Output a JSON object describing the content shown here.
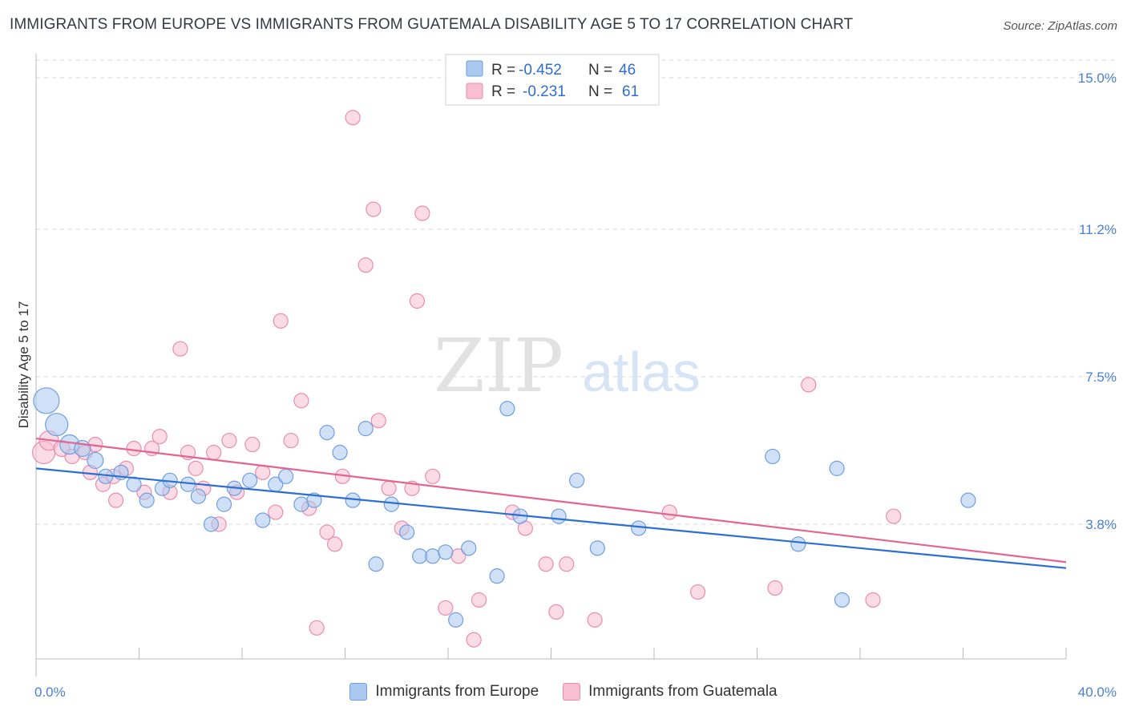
{
  "header": {
    "title": "IMMIGRANTS FROM EUROPE VS IMMIGRANTS FROM GUATEMALA DISABILITY AGE 5 TO 17 CORRELATION CHART",
    "source": "Source: ZipAtlas.com"
  },
  "watermark": {
    "zip": "ZIP",
    "atlas": "atlas"
  },
  "legend": {
    "rows": [
      {
        "r_label": "R =",
        "r_value": "-0.452",
        "n_label": "N =",
        "n_value": "46"
      },
      {
        "r_label": "R =",
        "r_value": "-0.231",
        "n_label": "N =",
        "n_value": "61"
      }
    ]
  },
  "colors": {
    "europe_fill": "#aac8f0",
    "europe_stroke": "#6f9fe0",
    "europe_line": "#2d6fd0",
    "guatemala_fill": "#f7bfd1",
    "guatemala_stroke": "#ea8cab",
    "guatemala_line": "#e2658f",
    "grid": "#d8d8d8",
    "tick_text": "#4a7fd4"
  },
  "chart_data": {
    "type": "scatter",
    "title": "IMMIGRANTS FROM EUROPE VS IMMIGRANTS FROM GUATEMALA DISABILITY AGE 5 TO 17 CORRELATION CHART",
    "xlabel": "",
    "ylabel": "Disability Age 5 to 17",
    "xlim": [
      0,
      40
    ],
    "ylim": [
      0.7,
      15.5
    ],
    "x_tick_labels": [
      "0.0%",
      "40.0%"
    ],
    "y_ticks": [
      3.8,
      7.5,
      11.2,
      15.0
    ],
    "y_tick_labels": [
      "3.8%",
      "7.5%",
      "11.2%",
      "15.0%"
    ],
    "grid": true,
    "legend_position": "top-center",
    "series": [
      {
        "name": "Immigrants from Europe",
        "R": -0.452,
        "N": 46,
        "trend": {
          "x": [
            0,
            40
          ],
          "y": [
            5.2,
            2.7
          ]
        },
        "points": [
          [
            0.4,
            6.9,
            16
          ],
          [
            0.8,
            6.3,
            14
          ],
          [
            1.3,
            5.8,
            12
          ],
          [
            1.8,
            5.7,
            10
          ],
          [
            2.3,
            5.4,
            10
          ],
          [
            2.7,
            5.0,
            9
          ],
          [
            3.3,
            5.1,
            9
          ],
          [
            3.8,
            4.8,
            9
          ],
          [
            4.3,
            4.4,
            9
          ],
          [
            4.9,
            4.7,
            9
          ],
          [
            5.2,
            4.9,
            9
          ],
          [
            5.9,
            4.8,
            9
          ],
          [
            6.3,
            4.5,
            9
          ],
          [
            6.8,
            3.8,
            9
          ],
          [
            7.3,
            4.3,
            9
          ],
          [
            7.7,
            4.7,
            9
          ],
          [
            8.3,
            4.9,
            9
          ],
          [
            8.8,
            3.9,
            9
          ],
          [
            9.3,
            4.8,
            9
          ],
          [
            9.7,
            5.0,
            9
          ],
          [
            10.3,
            4.3,
            9
          ],
          [
            10.8,
            4.4,
            9
          ],
          [
            11.3,
            6.1,
            9
          ],
          [
            11.8,
            5.6,
            9
          ],
          [
            12.3,
            4.4,
            9
          ],
          [
            12.8,
            6.2,
            9
          ],
          [
            13.2,
            2.8,
            9
          ],
          [
            13.8,
            4.3,
            9
          ],
          [
            14.4,
            3.6,
            9
          ],
          [
            14.9,
            3.0,
            9
          ],
          [
            15.4,
            3.0,
            9
          ],
          [
            15.9,
            3.1,
            9
          ],
          [
            16.3,
            1.4,
            9
          ],
          [
            16.8,
            3.2,
            9
          ],
          [
            17.9,
            2.5,
            9
          ],
          [
            18.3,
            6.7,
            9
          ],
          [
            18.8,
            4.0,
            9
          ],
          [
            20.3,
            4.0,
            9
          ],
          [
            21.0,
            4.9,
            9
          ],
          [
            21.8,
            3.2,
            9
          ],
          [
            23.4,
            3.7,
            9
          ],
          [
            28.6,
            5.5,
            9
          ],
          [
            29.6,
            3.3,
            9
          ],
          [
            31.1,
            5.2,
            9
          ],
          [
            31.3,
            1.9,
            9
          ],
          [
            36.2,
            4.4,
            9
          ]
        ]
      },
      {
        "name": "Immigrants from Guatemala",
        "R": -0.231,
        "N": 61,
        "trend": {
          "x": [
            0,
            40
          ],
          "y": [
            5.95,
            2.85
          ]
        },
        "points": [
          [
            0.3,
            5.6,
            14
          ],
          [
            0.5,
            5.9,
            12
          ],
          [
            1.0,
            5.7,
            10
          ],
          [
            1.4,
            5.5,
            9
          ],
          [
            1.9,
            5.6,
            9
          ],
          [
            2.1,
            5.1,
            9
          ],
          [
            2.3,
            5.8,
            9
          ],
          [
            2.6,
            4.8,
            9
          ],
          [
            3.0,
            5.0,
            9
          ],
          [
            3.1,
            4.4,
            9
          ],
          [
            3.5,
            5.2,
            9
          ],
          [
            3.8,
            5.7,
            9
          ],
          [
            4.2,
            4.6,
            9
          ],
          [
            4.5,
            5.7,
            9
          ],
          [
            4.8,
            6.0,
            9
          ],
          [
            5.2,
            4.6,
            9
          ],
          [
            5.6,
            8.2,
            9
          ],
          [
            5.9,
            5.6,
            9
          ],
          [
            6.2,
            5.2,
            9
          ],
          [
            6.5,
            4.7,
            9
          ],
          [
            6.9,
            5.6,
            9
          ],
          [
            7.1,
            3.8,
            9
          ],
          [
            7.5,
            5.9,
            9
          ],
          [
            7.8,
            4.6,
            9
          ],
          [
            8.4,
            5.8,
            9
          ],
          [
            8.8,
            5.1,
            9
          ],
          [
            9.3,
            4.1,
            9
          ],
          [
            9.5,
            8.9,
            9
          ],
          [
            9.9,
            5.9,
            9
          ],
          [
            10.3,
            6.9,
            9
          ],
          [
            10.6,
            4.2,
            9
          ],
          [
            10.9,
            1.2,
            9
          ],
          [
            11.3,
            3.6,
            9
          ],
          [
            11.6,
            3.3,
            9
          ],
          [
            11.9,
            5.0,
            9
          ],
          [
            12.3,
            14.0,
            9
          ],
          [
            12.8,
            10.3,
            9
          ],
          [
            13.1,
            11.7,
            9
          ],
          [
            13.3,
            6.4,
            9
          ],
          [
            13.7,
            4.7,
            9
          ],
          [
            14.2,
            3.7,
            9
          ],
          [
            14.6,
            4.7,
            9
          ],
          [
            15.0,
            11.6,
            9
          ],
          [
            14.8,
            9.4,
            9
          ],
          [
            15.4,
            5.0,
            9
          ],
          [
            15.9,
            1.7,
            9
          ],
          [
            16.4,
            3.0,
            9
          ],
          [
            17.0,
            0.9,
            9
          ],
          [
            17.2,
            1.9,
            9
          ],
          [
            18.5,
            4.1,
            9
          ],
          [
            19.0,
            3.7,
            9
          ],
          [
            19.8,
            2.8,
            9
          ],
          [
            20.2,
            1.6,
            9
          ],
          [
            20.6,
            2.8,
            9
          ],
          [
            21.7,
            1.4,
            9
          ],
          [
            24.6,
            4.1,
            9
          ],
          [
            25.7,
            2.1,
            9
          ],
          [
            28.7,
            2.2,
            9
          ],
          [
            30.0,
            7.3,
            9
          ],
          [
            32.5,
            1.9,
            9
          ],
          [
            33.3,
            4.0,
            9
          ]
        ]
      }
    ]
  },
  "bottom_legend": {
    "europe_label": "Immigrants from Europe",
    "guatemala_label": "Immigrants from Guatemala"
  }
}
